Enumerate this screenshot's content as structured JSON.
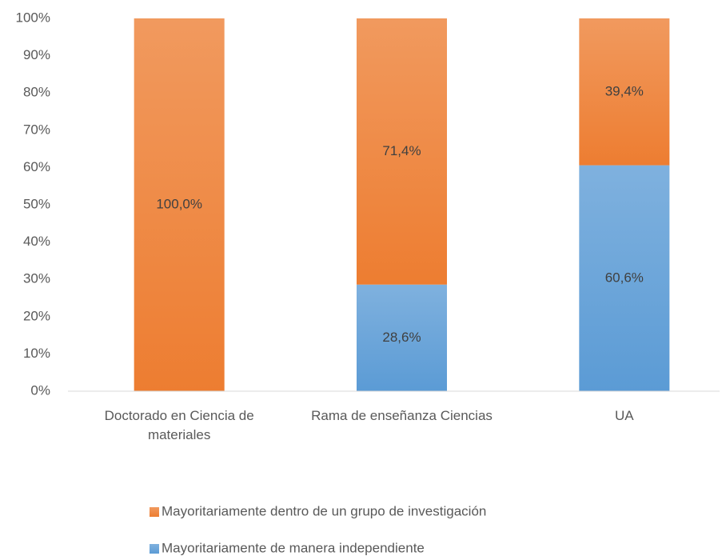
{
  "chart_data": {
    "type": "stacked_bar",
    "categories": [
      "Doctorado en Ciencia de materiales",
      "Rama de enseñanza Ciencias",
      "UA"
    ],
    "series": [
      {
        "name": "Mayoritariamente de manera independiente",
        "color": "#5b9bd5",
        "values": [
          0,
          28.6,
          60.6
        ],
        "value_labels": [
          null,
          "28,6%",
          "60,6%"
        ]
      },
      {
        "name": "Mayoritariamente dentro de un grupo de investigación",
        "color": "#ed7d31",
        "values": [
          100,
          71.4,
          39.4
        ],
        "value_labels": [
          "100,0%",
          "71,4%",
          "39,4%"
        ]
      }
    ],
    "ylim": [
      0,
      100
    ],
    "yticks": [
      {
        "value": 0,
        "label": "0%"
      },
      {
        "value": 10,
        "label": "10%"
      },
      {
        "value": 20,
        "label": "20%"
      },
      {
        "value": 30,
        "label": "30%"
      },
      {
        "value": 40,
        "label": "40%"
      },
      {
        "value": 50,
        "label": "50%"
      },
      {
        "value": 60,
        "label": "60%"
      },
      {
        "value": 70,
        "label": "70%"
      },
      {
        "value": 80,
        "label": "80%"
      },
      {
        "value": 90,
        "label": "90%"
      },
      {
        "value": 100,
        "label": "100%"
      }
    ],
    "grid": false,
    "legend": "bottom"
  }
}
